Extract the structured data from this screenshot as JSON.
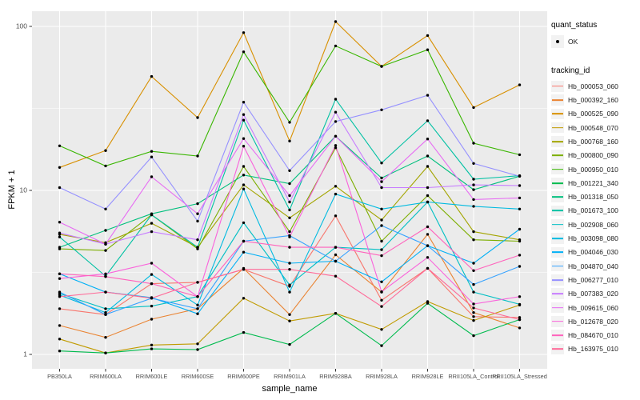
{
  "figure": {
    "y_axis_title": "FPKM + 1",
    "x_axis_title": "sample_name"
  },
  "legend": {
    "quant_status_title": "quant_status",
    "ok_label": "OK",
    "ok_marker": "black-point-icon",
    "tracking_title": "tracking_id"
  },
  "colors": {
    "panel_background": "#EBEBEB",
    "gridline": "#FFFFFF",
    "tick_text": "#4D4D4D",
    "axis_text": "#000000",
    "point": "#000000",
    "legend_key_fill": "#F2F2F2"
  },
  "chart_data": {
    "type": "line",
    "x_type": "categorical",
    "title": "",
    "xlabel": "sample_name",
    "ylabel": "FPKM + 1",
    "y_scale": "log10",
    "ylim": [
      0.97,
      124
    ],
    "y_ticks": [
      1,
      10,
      100
    ],
    "y_tick_labels": [
      "1",
      "10",
      "100"
    ],
    "y_minor_ticks": [
      3.162,
      31.623
    ],
    "grid": "white gridlines on gray panel",
    "legend_position": "right",
    "marker": "small black point at every observation",
    "quant_status": "OK",
    "categories": [
      "PB350LA",
      "RRIM600LA",
      "RRIM600LE",
      "RRIM600SE",
      "RRIM600PE",
      "RRIM901LA",
      "RRIM928BA",
      "RRIM928LA",
      "RRIM928LE",
      "RRII105LA_Control",
      "RRII105LA_Stressed"
    ],
    "series": [
      {
        "name": "Hb_000053_060",
        "color": "#F8766D",
        "values": [
          1.9,
          1.75,
          2.7,
          2.75,
          3.3,
          2.6,
          7.0,
          2.14,
          3.35,
          1.7,
          1.68
        ]
      },
      {
        "name": "Hb_000392_160",
        "color": "#EA8331",
        "values": [
          1.5,
          1.27,
          1.64,
          1.9,
          3.35,
          1.75,
          4.05,
          2.4,
          5.4,
          1.8,
          1.45
        ]
      },
      {
        "name": "Hb_000525_090",
        "color": "#D89000",
        "values": [
          13.8,
          17.5,
          49.5,
          27.8,
          91.6,
          20.0,
          107.0,
          57.0,
          88.0,
          32.0,
          44.0
        ]
      },
      {
        "name": "Hb_000548_070",
        "color": "#C09B00",
        "values": [
          1.24,
          1.02,
          1.14,
          1.16,
          2.2,
          1.6,
          1.78,
          1.42,
          2.1,
          1.61,
          2.0
        ]
      },
      {
        "name": "Hb_000768_160",
        "color": "#A3A500",
        "values": [
          5.4,
          4.8,
          6.3,
          4.5,
          10.8,
          6.8,
          10.6,
          6.6,
          14.0,
          5.6,
          5.0
        ]
      },
      {
        "name": "Hb_000800_090",
        "color": "#7CAE00",
        "values": [
          4.4,
          4.3,
          7.1,
          4.4,
          14.0,
          5.6,
          18.2,
          4.9,
          9.3,
          5.0,
          4.9
        ]
      },
      {
        "name": "Hb_000950_010",
        "color": "#39B600",
        "values": [
          18.7,
          14.1,
          17.3,
          16.2,
          70.0,
          26.0,
          76.0,
          57.0,
          72.0,
          19.4,
          16.5
        ]
      },
      {
        "name": "Hb_001221_340",
        "color": "#00BB4E",
        "values": [
          1.05,
          1.02,
          1.08,
          1.07,
          1.36,
          1.15,
          1.78,
          1.13,
          2.05,
          1.3,
          1.63
        ]
      },
      {
        "name": "Hb_001318_050",
        "color": "#00BF7D",
        "values": [
          4.5,
          5.7,
          7.2,
          8.3,
          12.4,
          11.0,
          21.4,
          11.9,
          16.2,
          10.1,
          12.2
        ]
      },
      {
        "name": "Hb_001673_100",
        "color": "#00C1A3",
        "values": [
          5.2,
          3.0,
          7.1,
          4.5,
          26.8,
          7.6,
          36.0,
          14.7,
          26.6,
          11.7,
          12.3
        ]
      },
      {
        "name": "Hb_002908_060",
        "color": "#00BFC4",
        "values": [
          2.35,
          1.9,
          1.97,
          2.25,
          6.35,
          2.65,
          4.5,
          4.35,
          8.5,
          2.4,
          2.02
        ]
      },
      {
        "name": "Hb_003098_080",
        "color": "#00BAE0",
        "values": [
          2.3,
          1.8,
          3.07,
          2.0,
          10.2,
          2.4,
          9.5,
          7.7,
          8.5,
          8.0,
          7.7
        ]
      },
      {
        "name": "Hb_004046_030",
        "color": "#00B0F6",
        "values": [
          3.1,
          2.4,
          2.22,
          1.77,
          4.2,
          3.6,
          3.7,
          2.77,
          4.6,
          3.6,
          5.8
        ]
      },
      {
        "name": "Hb_004870_040",
        "color": "#35A2FF",
        "values": [
          2.4,
          1.75,
          2.2,
          1.9,
          4.9,
          5.3,
          3.7,
          6.1,
          4.6,
          2.67,
          3.44
        ]
      },
      {
        "name": "Hb_006277_010",
        "color": "#9590FF",
        "values": [
          10.4,
          7.7,
          16.0,
          6.5,
          34.5,
          13.2,
          26.3,
          31.0,
          38.0,
          14.6,
          12.2
        ]
      },
      {
        "name": "Hb_007383_020",
        "color": "#C77CFF",
        "values": [
          5.5,
          4.7,
          5.6,
          5.0,
          29.0,
          8.5,
          30.0,
          10.4,
          10.4,
          10.8,
          10.7
        ]
      },
      {
        "name": "Hb_009615_060",
        "color": "#E76BF3",
        "values": [
          6.4,
          4.7,
          12.1,
          7.2,
          20.7,
          9.3,
          21.4,
          11.3,
          20.6,
          8.8,
          9.0
        ]
      },
      {
        "name": "Hb_012678_020",
        "color": "#FA62DB",
        "values": [
          2.9,
          3.1,
          3.6,
          2.25,
          18.6,
          5.2,
          18.8,
          2.41,
          3.9,
          2.03,
          2.25
        ]
      },
      {
        "name": "Hb_084670_010",
        "color": "#FF62BC",
        "values": [
          3.1,
          2.98,
          2.7,
          2.25,
          4.9,
          4.5,
          4.5,
          4.0,
          6.0,
          3.24,
          4.03
        ]
      },
      {
        "name": "Hb_163975_010",
        "color": "#FF6A98",
        "values": [
          2.25,
          2.4,
          2.2,
          2.75,
          3.3,
          3.3,
          3.0,
          1.96,
          3.35,
          1.92,
          1.63
        ]
      }
    ]
  }
}
